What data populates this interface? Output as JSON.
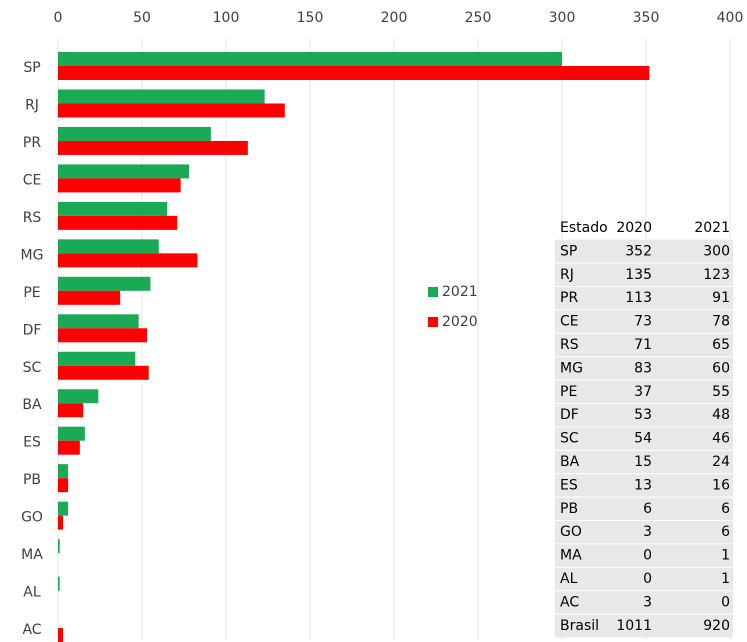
{
  "chart_data": {
    "type": "bar",
    "orientation": "horizontal",
    "categories": [
      "SP",
      "RJ",
      "PR",
      "CE",
      "RS",
      "MG",
      "PE",
      "DF",
      "SC",
      "BA",
      "ES",
      "PB",
      "GO",
      "MA",
      "AL",
      "AC"
    ],
    "series": [
      {
        "name": "2021",
        "color": "#1aaa55",
        "values": [
          300,
          123,
          91,
          78,
          65,
          60,
          55,
          48,
          46,
          24,
          16,
          6,
          6,
          1,
          1,
          0
        ]
      },
      {
        "name": "2020",
        "color": "#ff0000",
        "values": [
          352,
          135,
          113,
          73,
          71,
          83,
          37,
          53,
          54,
          15,
          13,
          6,
          3,
          0,
          0,
          3
        ]
      }
    ],
    "xlim": [
      0,
      400
    ],
    "xticks": [
      0,
      50,
      100,
      150,
      200,
      250,
      300,
      350,
      400
    ],
    "grid": true,
    "legend": "center"
  },
  "table": {
    "header": [
      "Estado",
      "2020",
      "2021"
    ],
    "rows": [
      [
        "SP",
        352,
        300
      ],
      [
        "RJ",
        135,
        123
      ],
      [
        "PR",
        113,
        91
      ],
      [
        "CE",
        73,
        78
      ],
      [
        "RS",
        71,
        65
      ],
      [
        "MG",
        83,
        60
      ],
      [
        "PE",
        37,
        55
      ],
      [
        "DF",
        53,
        48
      ],
      [
        "SC",
        54,
        46
      ],
      [
        "BA",
        15,
        24
      ],
      [
        "ES",
        13,
        16
      ],
      [
        "PB",
        6,
        6
      ],
      [
        "GO",
        3,
        6
      ],
      [
        "MA",
        0,
        1
      ],
      [
        "AL",
        0,
        1
      ],
      [
        "AC",
        3,
        0
      ],
      [
        "Brasil",
        1011,
        920
      ]
    ]
  }
}
